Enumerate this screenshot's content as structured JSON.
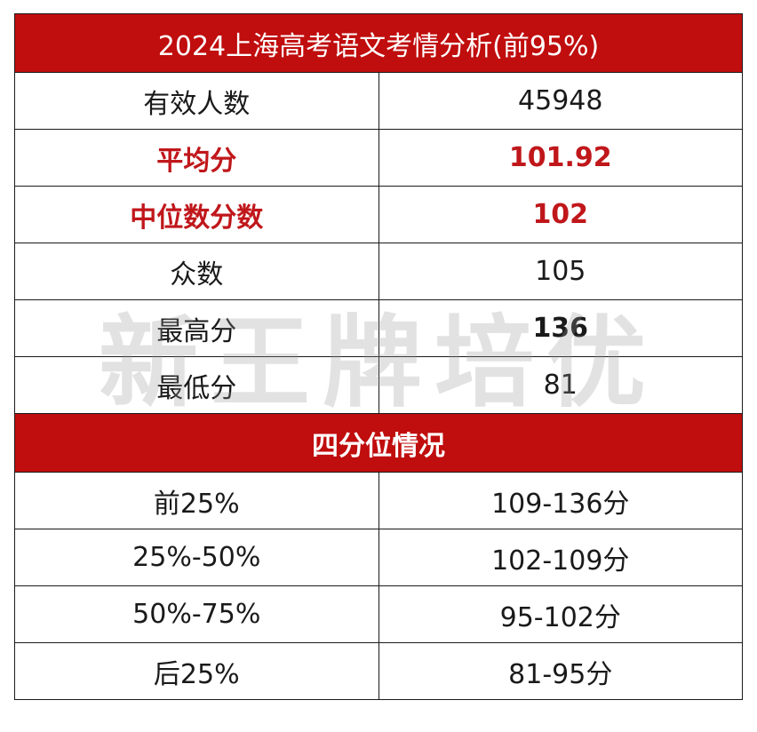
{
  "title": "2024上海高考语文考情分析(前95%)",
  "stats": [
    {
      "label": "有效人数",
      "value": "45948"
    },
    {
      "label": "平均分",
      "value": "101.92"
    },
    {
      "label": "中位数分数",
      "value": "102"
    },
    {
      "label": "众数",
      "value": "105"
    },
    {
      "label": "最高分",
      "value": "136"
    },
    {
      "label": "最低分",
      "value": "81"
    }
  ],
  "quartile_heading": "四分位情况",
  "quartiles": [
    {
      "label": "前25%",
      "value": "109-136分"
    },
    {
      "label": "25%-50%",
      "value": "102-109分"
    },
    {
      "label": "50%-75%",
      "value": "95-102分"
    },
    {
      "label": "后25%",
      "value": "81-95分"
    }
  ],
  "watermark": "新王牌培优",
  "colors": {
    "header_bg": "#c00d0d",
    "header_text": "#ffffff",
    "highlight_text": "#c0171b",
    "body_text": "#1a1a1a"
  }
}
